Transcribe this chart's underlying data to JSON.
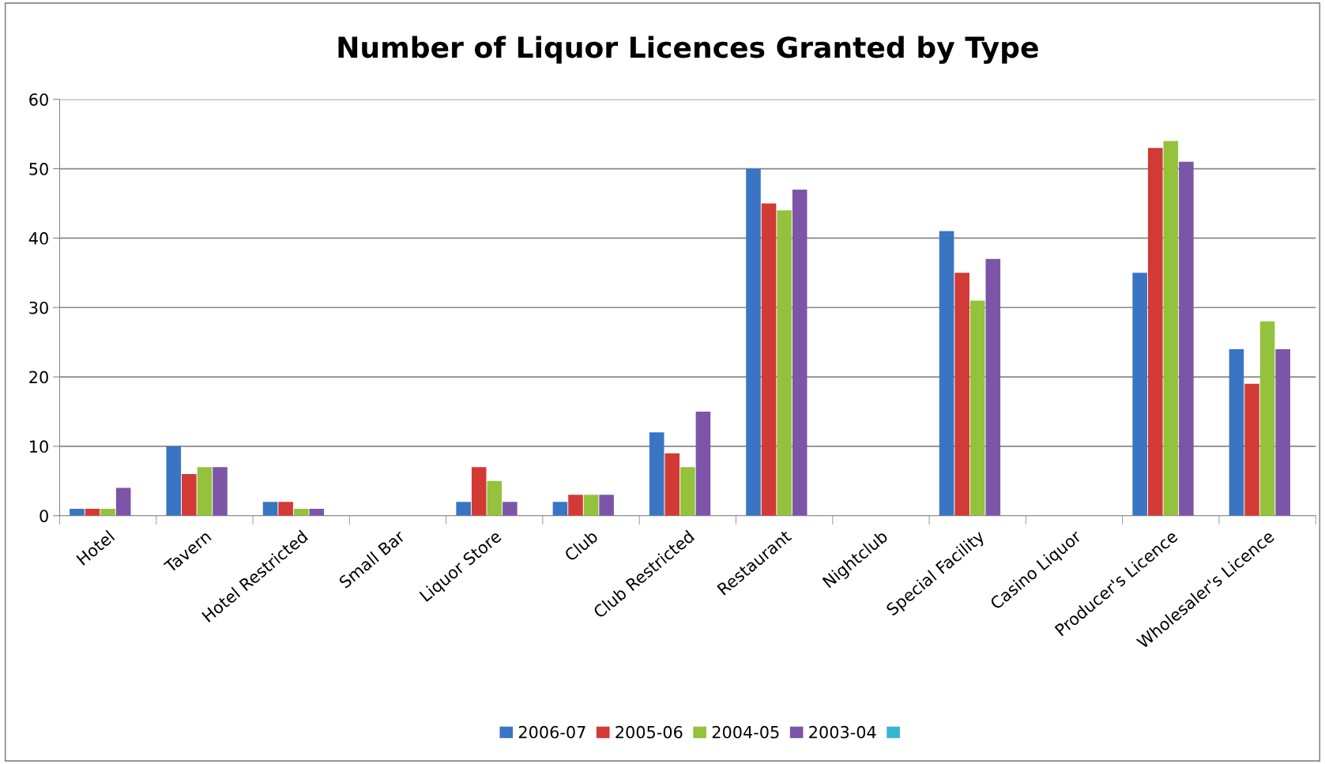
{
  "chart_data": {
    "type": "bar",
    "title": "Number of Liquor Licences Granted by Type",
    "categories": [
      "Hotel",
      "Tavern",
      "Hotel Restricted",
      "Small Bar",
      "Liquor Store",
      "Club",
      "Club Restricted",
      "Restaurant",
      "Nightclub",
      "Special Facility",
      "Casino Liquor",
      "Producer's Licence",
      "Wholesaler's Licence"
    ],
    "series": [
      {
        "name": "2006-07",
        "color": "#3a75c4",
        "values": [
          1,
          10,
          2,
          0,
          2,
          2,
          12,
          50,
          0,
          41,
          0,
          35,
          24
        ]
      },
      {
        "name": "2005-06",
        "color": "#d23a36",
        "values": [
          1,
          6,
          2,
          0,
          7,
          3,
          9,
          45,
          0,
          35,
          0,
          53,
          19
        ]
      },
      {
        "name": "2004-05",
        "color": "#94c23c",
        "values": [
          1,
          7,
          1,
          0,
          5,
          3,
          7,
          44,
          0,
          31,
          0,
          54,
          28
        ]
      },
      {
        "name": "2003-04",
        "color": "#7d55a8",
        "values": [
          4,
          7,
          1,
          0,
          2,
          3,
          15,
          47,
          0,
          37,
          0,
          51,
          24
        ]
      },
      {
        "color": "#36b5cf",
        "values": [
          null,
          null,
          null,
          null,
          null,
          null,
          null,
          null,
          null,
          null,
          null,
          null,
          null
        ]
      }
    ],
    "ylim": [
      0,
      60
    ],
    "yticks": [
      0,
      10,
      20,
      30,
      40,
      50,
      60
    ],
    "grid": "y",
    "legend": "bottom"
  }
}
